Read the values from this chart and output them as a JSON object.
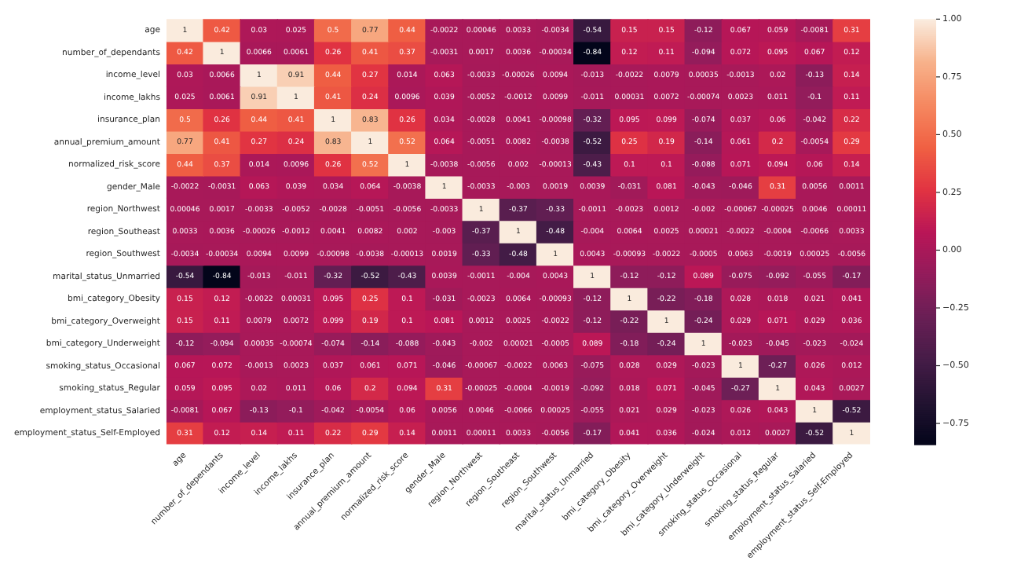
{
  "chart_data": {
    "type": "heatmap",
    "categories": [
      "age",
      "number_of_dependants",
      "income_level",
      "income_lakhs",
      "insurance_plan",
      "annual_premium_amount",
      "normalized_risk_score",
      "gender_Male",
      "region_Northwest",
      "region_Southeast",
      "region_Southwest",
      "marital_status_Unmarried",
      "bmi_category_Obesity",
      "bmi_category_Overweight",
      "bmi_category_Underweight",
      "smoking_status_Occasional",
      "smoking_status_Regular",
      "employment_status_Salaried",
      "employment_status_Self-Employed"
    ],
    "y_categories": [
      "age",
      "number_of_dependants",
      "income_level",
      "income_lakhs",
      "insurance_plan",
      "annual_premium_amount",
      "normalized_risk_score",
      "gender_Male",
      "region_Northwest",
      "region_Southeast",
      "region_Southwest",
      "marital_status_Unmarried",
      "bmi_category_Obesity",
      "bmi_category_Overweight",
      "bmi_category_Underweight",
      "smoking_status_Occasional",
      "smoking_status_Regular",
      "employment_status_Salaried",
      "employment_status_Self-Employed"
    ],
    "cells": [
      [
        1,
        0.42,
        0.03,
        0.025,
        0.5,
        0.77,
        0.44,
        -0.0022,
        0.00046,
        0.0033,
        -0.0034,
        -0.54,
        0.15,
        0.15,
        -0.12,
        0.067,
        0.059,
        -0.0081,
        0.31
      ],
      [
        0.42,
        1,
        0.0066,
        0.0061,
        0.26,
        0.41,
        0.37,
        -0.0031,
        0.0017,
        0.0036,
        -0.00034,
        -0.84,
        0.12,
        0.11,
        -0.094,
        0.072,
        0.095,
        0.067,
        0.12
      ],
      [
        0.03,
        0.0066,
        1,
        0.91,
        0.44,
        0.27,
        0.014,
        0.063,
        -0.0033,
        -0.00026,
        0.0094,
        -0.013,
        -0.0022,
        0.0079,
        0.00035,
        -0.0013,
        0.02,
        -0.13,
        0.14
      ],
      [
        0.025,
        0.0061,
        0.91,
        1,
        0.41,
        0.24,
        0.0096,
        0.039,
        -0.0052,
        -0.0012,
        0.0099,
        -0.011,
        0.00031,
        0.0072,
        -0.00074,
        0.0023,
        0.011,
        -0.1,
        0.11
      ],
      [
        0.5,
        0.26,
        0.44,
        0.41,
        1,
        0.83,
        0.26,
        0.034,
        -0.0028,
        0.0041,
        -0.00098,
        -0.32,
        0.095,
        0.099,
        -0.074,
        0.037,
        0.06,
        -0.042,
        0.22
      ],
      [
        0.77,
        0.41,
        0.27,
        0.24,
        0.83,
        1,
        0.52,
        0.064,
        -0.0051,
        0.0082,
        -0.0038,
        -0.52,
        0.25,
        0.19,
        -0.14,
        0.061,
        0.2,
        -0.0054,
        0.29
      ],
      [
        0.44,
        0.37,
        0.014,
        0.0096,
        0.26,
        0.52,
        1,
        -0.0038,
        -0.0056,
        0.002,
        -0.00013,
        -0.43,
        0.1,
        0.1,
        -0.088,
        0.071,
        0.094,
        0.06,
        0.14
      ],
      [
        -0.0022,
        -0.0031,
        0.063,
        0.039,
        0.034,
        0.064,
        -0.0038,
        1,
        -0.0033,
        -0.003,
        0.0019,
        0.0039,
        -0.031,
        0.081,
        -0.043,
        -0.046,
        0.31,
        0.0056,
        0.0011
      ],
      [
        0.00046,
        0.0017,
        -0.0033,
        -0.0052,
        -0.0028,
        -0.0051,
        -0.0056,
        -0.0033,
        1,
        -0.37,
        -0.33,
        -0.0011,
        -0.0023,
        0.0012,
        -0.002,
        -0.00067,
        -0.00025,
        0.0046,
        0.00011
      ],
      [
        0.0033,
        0.0036,
        -0.00026,
        -0.0012,
        0.0041,
        0.0082,
        0.002,
        -0.003,
        -0.37,
        1,
        -0.48,
        -0.004,
        0.0064,
        0.0025,
        0.00021,
        -0.0022,
        -0.0004,
        -0.0066,
        0.0033
      ],
      [
        -0.0034,
        -0.00034,
        0.0094,
        0.0099,
        -0.00098,
        -0.0038,
        -0.00013,
        0.0019,
        -0.33,
        -0.48,
        1,
        0.0043,
        -0.00093,
        -0.0022,
        -0.0005,
        0.0063,
        -0.0019,
        0.00025,
        -0.0056
      ],
      [
        -0.54,
        -0.84,
        -0.013,
        -0.011,
        -0.32,
        -0.52,
        -0.43,
        0.0039,
        -0.0011,
        -0.004,
        0.0043,
        1,
        -0.12,
        -0.12,
        0.089,
        -0.075,
        -0.092,
        -0.055,
        -0.17
      ],
      [
        0.15,
        0.12,
        -0.0022,
        0.00031,
        0.095,
        0.25,
        0.1,
        -0.031,
        -0.0023,
        0.0064,
        -0.00093,
        -0.12,
        1,
        -0.22,
        -0.18,
        0.028,
        0.018,
        0.021,
        0.041
      ],
      [
        0.15,
        0.11,
        0.0079,
        0.0072,
        0.099,
        0.19,
        0.1,
        0.081,
        0.0012,
        0.0025,
        -0.0022,
        -0.12,
        -0.22,
        1,
        -0.24,
        0.029,
        0.071,
        0.029,
        0.036
      ],
      [
        -0.12,
        -0.094,
        0.00035,
        -0.00074,
        -0.074,
        -0.14,
        -0.088,
        -0.043,
        -0.002,
        0.00021,
        -0.0005,
        0.089,
        -0.18,
        -0.24,
        1,
        -0.023,
        -0.045,
        -0.023,
        -0.024
      ],
      [
        0.067,
        0.072,
        -0.0013,
        0.0023,
        0.037,
        0.061,
        0.071,
        -0.046,
        -0.00067,
        -0.0022,
        0.0063,
        -0.075,
        0.028,
        0.029,
        -0.023,
        1,
        -0.27,
        0.026,
        0.012
      ],
      [
        0.059,
        0.095,
        0.02,
        0.011,
        0.06,
        0.2,
        0.094,
        0.31,
        -0.00025,
        -0.0004,
        -0.0019,
        -0.092,
        0.018,
        0.071,
        -0.045,
        -0.27,
        1,
        0.043,
        0.0027
      ],
      [
        -0.0081,
        0.067,
        -0.13,
        -0.1,
        -0.042,
        -0.0054,
        0.06,
        0.0056,
        0.0046,
        -0.0066,
        0.00025,
        -0.055,
        0.021,
        0.029,
        -0.023,
        0.026,
        0.043,
        1,
        -0.52
      ],
      [
        0.31,
        0.12,
        0.14,
        0.11,
        0.22,
        0.29,
        0.14,
        0.0011,
        0.00011,
        0.0033,
        -0.0056,
        -0.17,
        0.041,
        0.036,
        -0.024,
        0.012,
        0.0027,
        -0.52,
        1
      ]
    ],
    "data_labels": true,
    "clim": [
      -0.84,
      1
    ],
    "cticks": [
      {
        "value": 1,
        "label": "1.00"
      },
      {
        "value": 0.75,
        "label": "0.75"
      },
      {
        "value": 0.5,
        "label": "0.50"
      },
      {
        "value": 0.25,
        "label": "0.25"
      },
      {
        "value": 0,
        "label": "0.00"
      },
      {
        "value": -0.25,
        "label": "−0.25"
      },
      {
        "value": -0.5,
        "label": "−0.50"
      },
      {
        "value": -0.75,
        "label": "−0.75"
      }
    ]
  }
}
